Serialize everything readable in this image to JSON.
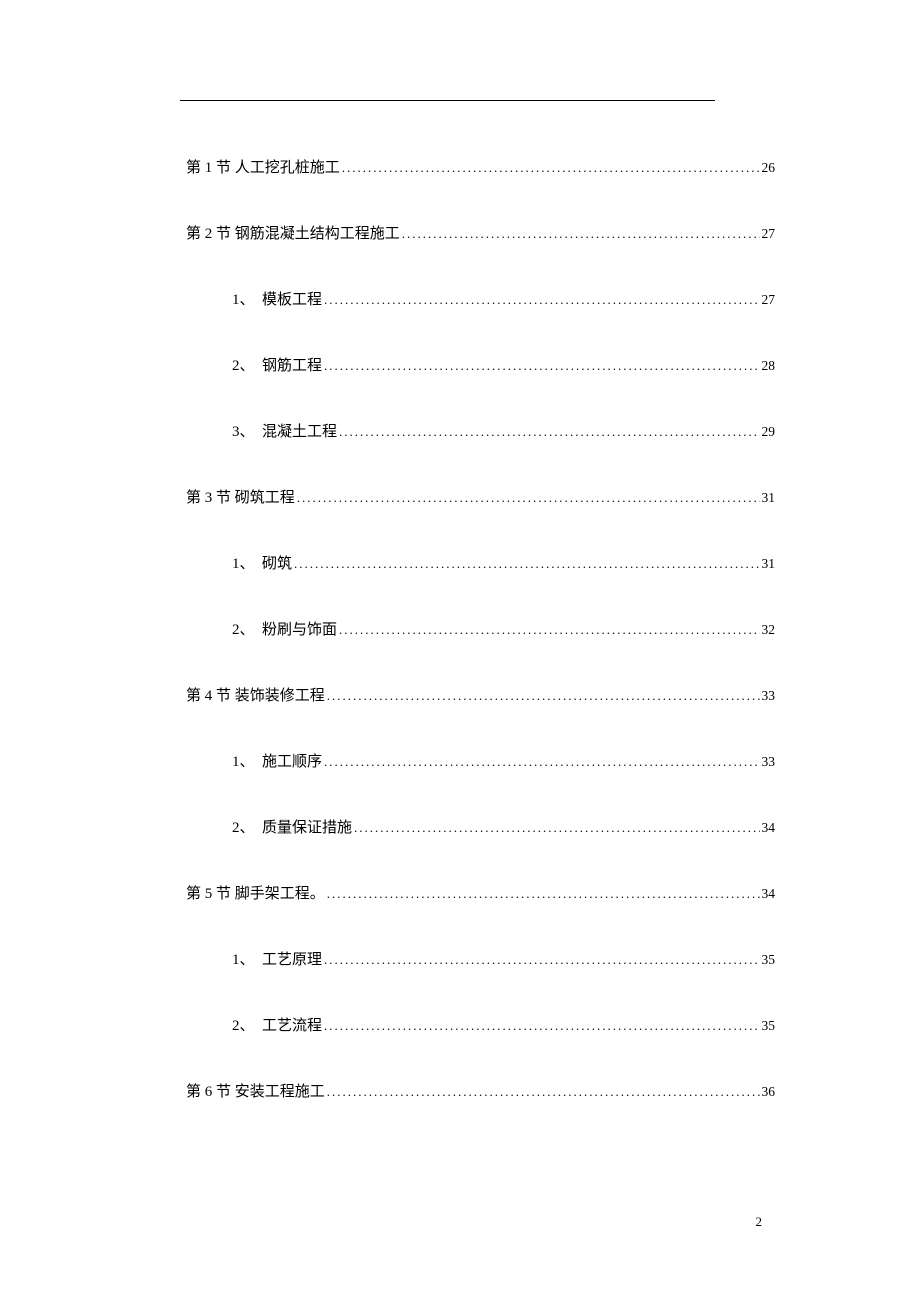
{
  "toc": [
    {
      "level": 1,
      "label": "第 1 节  人工挖孔桩施工",
      "page": "26"
    },
    {
      "level": 1,
      "label": "第 2 节  钢筋混凝土结构工程施工",
      "page": "27"
    },
    {
      "level": 2,
      "label": "1、　模板工程",
      "page": "27"
    },
    {
      "level": 2,
      "label": "2、　钢筋工程",
      "page": "28"
    },
    {
      "level": 2,
      "label": "3、　混凝土工程",
      "page": "29"
    },
    {
      "level": 1,
      "label": "第 3 节  砌筑工程",
      "page": "31"
    },
    {
      "level": 2,
      "label": "1、　砌筑",
      "page": "31"
    },
    {
      "level": 2,
      "label": "2、　粉刷与饰面",
      "page": "32"
    },
    {
      "level": 1,
      "label": "第 4 节  装饰装修工程",
      "page": "33"
    },
    {
      "level": 2,
      "label": "1、　施工顺序",
      "page": "33"
    },
    {
      "level": 2,
      "label": "2、　质量保证措施",
      "page": "34"
    },
    {
      "level": 1,
      "label": "第 5 节  脚手架工程。",
      "page": "34"
    },
    {
      "level": 2,
      "label": "1、　工艺原理",
      "page": "35"
    },
    {
      "level": 2,
      "label": "2、　工艺流程",
      "page": "35"
    },
    {
      "level": 1,
      "label": "第 6 节  安装工程施工",
      "page": "36"
    }
  ],
  "footer_page": "2"
}
